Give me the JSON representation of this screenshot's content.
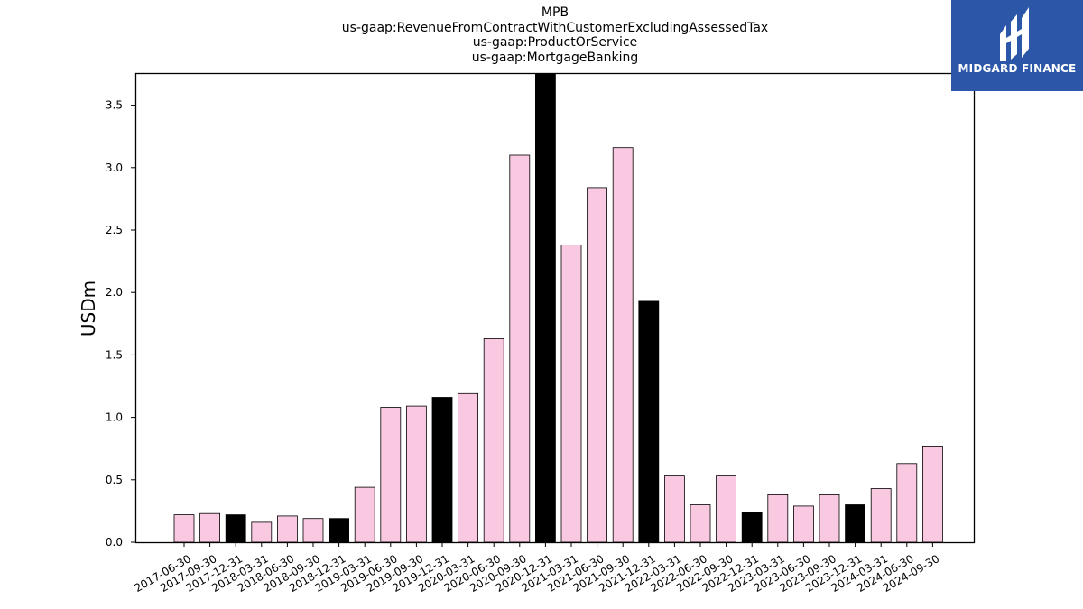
{
  "chart_data": {
    "type": "bar",
    "title_lines": [
      "MPB",
      "us-gaap:RevenueFromContractWithCustomerExcludingAssessedTax",
      "us-gaap:ProductOrService",
      "us-gaap:MortgageBanking"
    ],
    "ylabel": "USDm",
    "xlabel": "",
    "ylim": [
      0,
      3.75
    ],
    "yticks": [
      "0.0",
      "0.5",
      "1.0",
      "1.5",
      "2.0",
      "2.5",
      "3.0",
      "3.5"
    ],
    "grid": false,
    "categories": [
      "2017-06-30",
      "2017-09-30",
      "2017-12-31",
      "2018-03-31",
      "2018-06-30",
      "2018-09-30",
      "2018-12-31",
      "2019-03-31",
      "2019-06-30",
      "2019-09-30",
      "2019-12-31",
      "2020-03-31",
      "2020-06-30",
      "2020-09-30",
      "2020-12-31",
      "2021-03-31",
      "2021-06-30",
      "2021-09-30",
      "2021-12-31",
      "2022-03-31",
      "2022-06-30",
      "2022-09-30",
      "2022-12-31",
      "2023-03-31",
      "2023-06-30",
      "2023-09-30",
      "2023-12-31",
      "2024-03-31",
      "2024-06-30",
      "2024-09-30"
    ],
    "values": [
      0.22,
      0.23,
      0.22,
      0.16,
      0.21,
      0.19,
      0.19,
      0.44,
      1.08,
      1.09,
      1.16,
      1.19,
      1.63,
      3.1,
      3.75,
      2.38,
      2.84,
      3.16,
      1.93,
      0.53,
      0.3,
      0.53,
      0.24,
      0.38,
      0.29,
      0.38,
      0.3,
      0.43,
      0.63,
      0.77
    ],
    "bar_colors": {
      "quarter": "#f9c9e1",
      "year_end": "#000000",
      "edge": "#000000"
    }
  },
  "logo": {
    "text": "MIDGARD FINANCE",
    "background": "#2c57a8"
  }
}
